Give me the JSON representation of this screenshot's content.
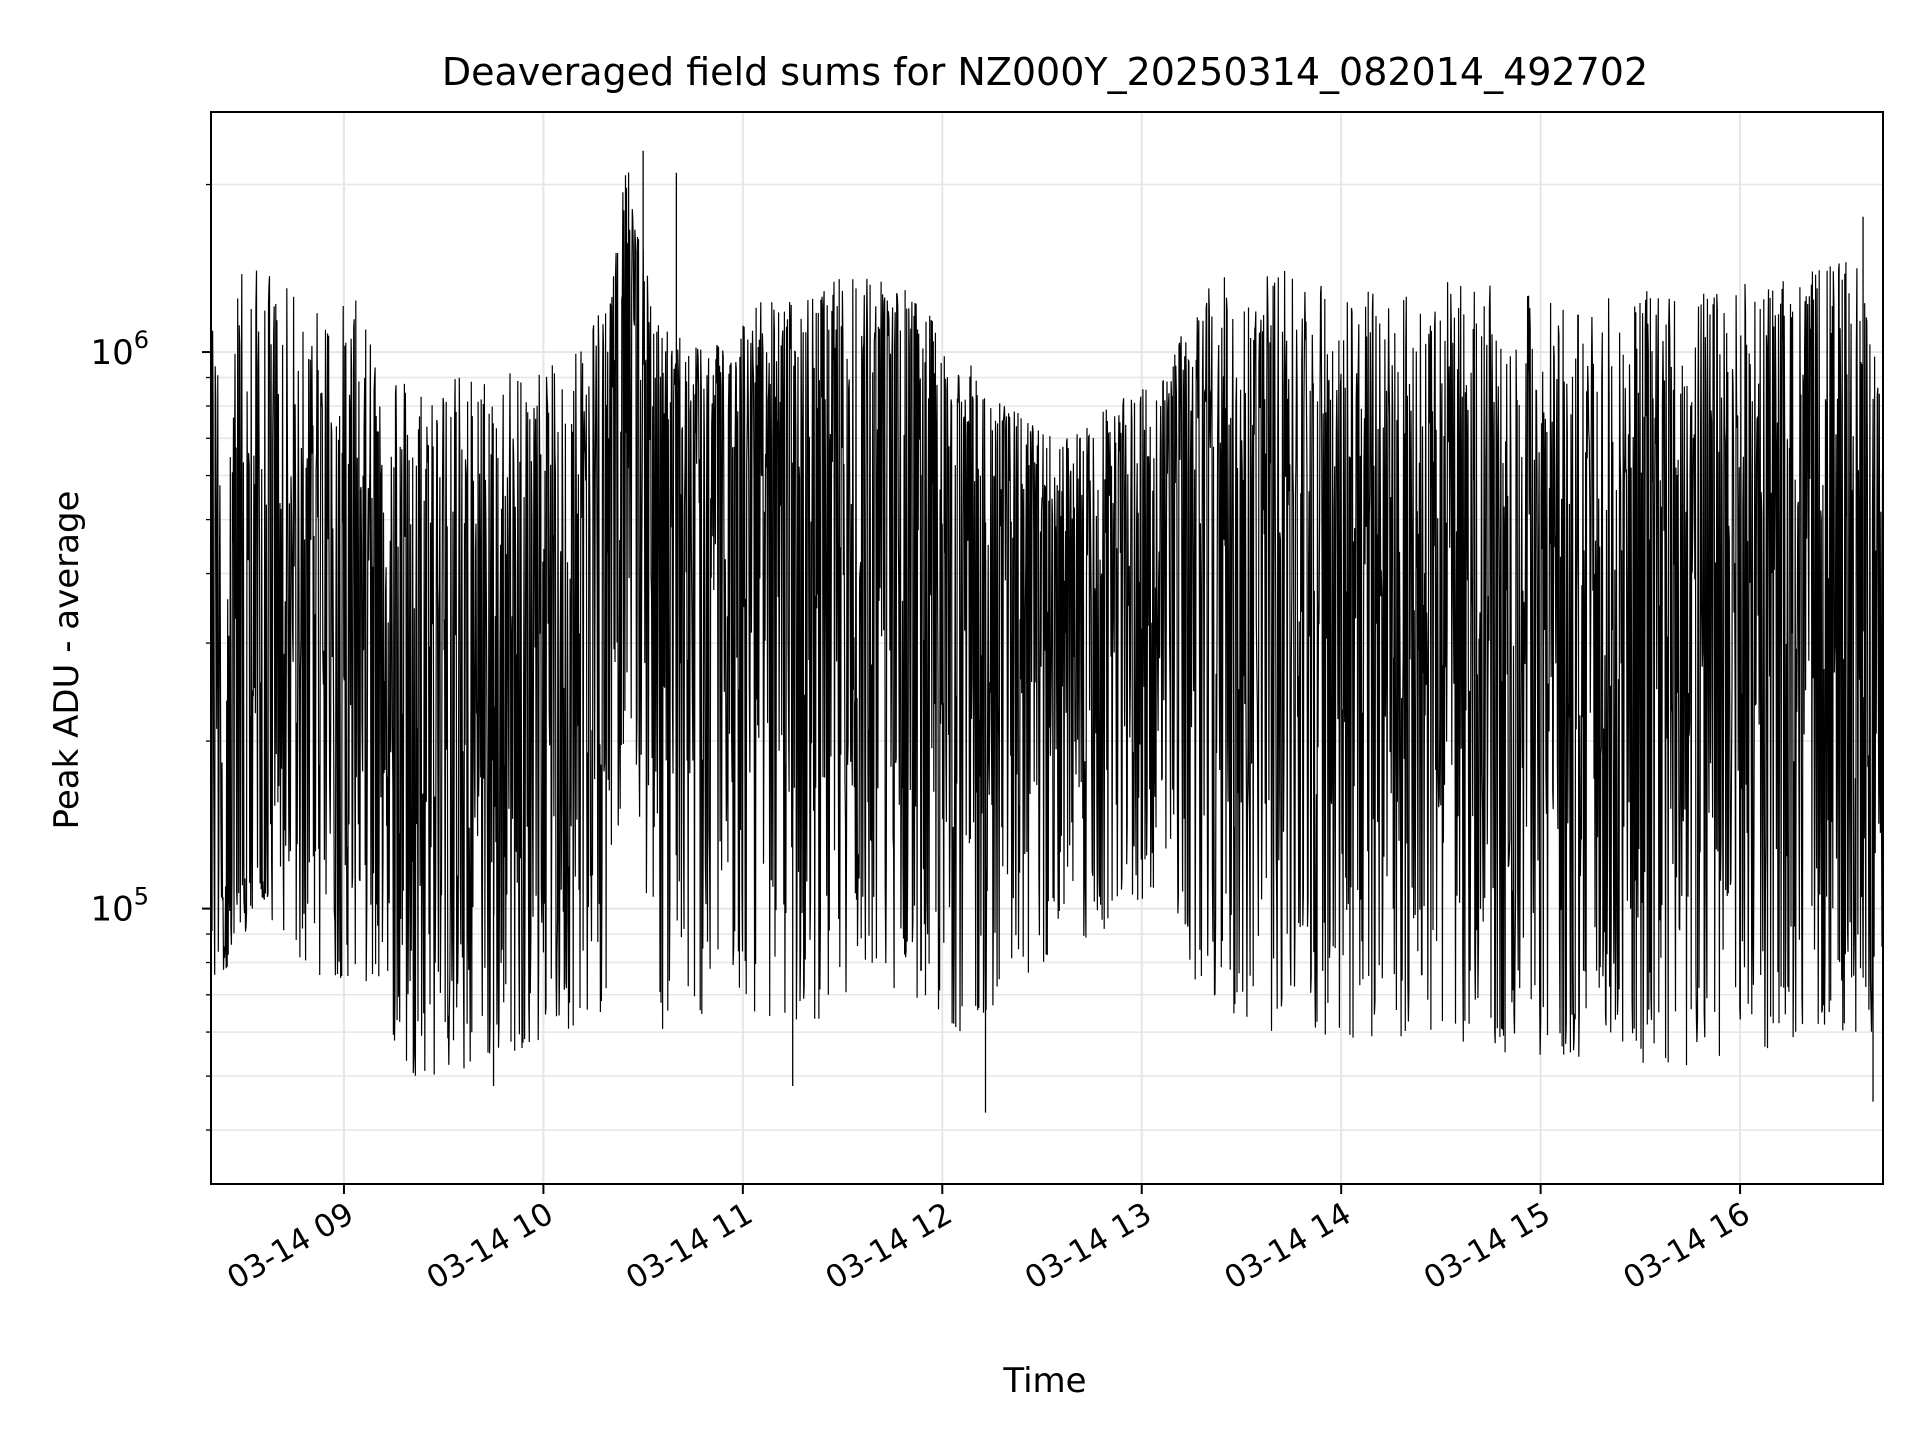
{
  "chart_data": {
    "type": "line",
    "title": "Deaveraged field sums for NZ000Y_20250314_082014_492702",
    "xlabel": "Time",
    "ylabel": "Peak ADU - average",
    "x_range": [
      "2025-03-14 08:20",
      "2025-03-14 16:43"
    ],
    "y_range": [
      32000,
      2700000
    ],
    "y_scale": "log",
    "grid": true,
    "legend": "none",
    "line_color": "#000000",
    "x_ticks": [
      "03-14 09",
      "03-14 10",
      "03-14 11",
      "03-14 12",
      "03-14 13",
      "03-14 14",
      "03-14 15",
      "03-14 16"
    ],
    "x_tick_times": [
      "2025-03-14 09:00",
      "2025-03-14 10:00",
      "2025-03-14 11:00",
      "2025-03-14 12:00",
      "2025-03-14 13:00",
      "2025-03-14 14:00",
      "2025-03-14 15:00",
      "2025-03-14 16:00"
    ],
    "y_ticks": [
      {
        "value": 100000,
        "base": "10",
        "exp": "5"
      },
      {
        "value": 1000000,
        "base": "10",
        "exp": "6"
      }
    ],
    "series": [
      {
        "x": [
          "2025-03-14 08:20",
          "2025-03-14 08:35",
          "2025-03-14 08:50",
          "2025-03-14 09:05",
          "2025-03-14 09:20",
          "2025-03-14 09:35",
          "2025-03-14 09:50",
          "2025-03-14 10:05",
          "2025-03-14 10:20",
          "2025-03-14 10:25",
          "2025-03-14 10:35",
          "2025-03-14 10:50",
          "2025-03-14 11:05",
          "2025-03-14 11:20",
          "2025-03-14 11:35",
          "2025-03-14 11:50",
          "2025-03-14 12:05",
          "2025-03-14 12:20",
          "2025-03-14 12:35",
          "2025-03-14 12:50",
          "2025-03-14 13:05",
          "2025-03-14 13:20",
          "2025-03-14 13:35",
          "2025-03-14 13:50",
          "2025-03-14 14:05",
          "2025-03-14 14:20",
          "2025-03-14 14:35",
          "2025-03-14 14:50",
          "2025-03-14 15:05",
          "2025-03-14 15:20",
          "2025-03-14 15:35",
          "2025-03-14 15:50",
          "2025-03-14 16:05",
          "2025-03-14 16:20",
          "2025-03-14 16:35",
          "2025-03-14 16:43"
        ],
        "y_high": [
          1300000,
          1450000,
          1200000,
          1250000,
          900000,
          920000,
          950000,
          950000,
          1300000,
          2200000,
          1100000,
          1050000,
          1250000,
          1250000,
          1450000,
          1300000,
          1000000,
          800000,
          700000,
          800000,
          900000,
          1350000,
          1400000,
          1400000,
          1300000,
          1300000,
          1350000,
          1300000,
          1250000,
          1250000,
          1300000,
          1300000,
          1350000,
          1400000,
          1500000,
          850000
        ],
        "y_low": [
          70000,
          100000,
          75000,
          75000,
          50000,
          50000,
          55000,
          60000,
          65000,
          250000,
          60000,
          65000,
          65000,
          60000,
          75000,
          70000,
          60000,
          70000,
          85000,
          90000,
          110000,
          65000,
          60000,
          60000,
          58000,
          58000,
          58000,
          55000,
          52000,
          55000,
          52000,
          52000,
          55000,
          60000,
          60000,
          55000
        ],
        "y_mid": [
          110000,
          120000,
          400000,
          300000,
          250000,
          230000,
          220000,
          300000,
          700000,
          1200000,
          750000,
          550000,
          600000,
          650000,
          800000,
          750000,
          550000,
          450000,
          350000,
          420000,
          500000,
          450000,
          400000,
          380000,
          350000,
          330000,
          320000,
          300000,
          280000,
          270000,
          270000,
          280000,
          300000,
          300000,
          320000,
          300000
        ]
      }
    ],
    "notable_spikes": [
      {
        "x": "2025-03-14 10:30",
        "y": 2300000
      },
      {
        "x": "2025-03-14 10:40",
        "y": 2100000
      },
      {
        "x": "2025-03-14 16:37",
        "y": 1750000
      },
      {
        "x": "2025-03-14 09:45",
        "y": 48000
      },
      {
        "x": "2025-03-14 12:13",
        "y": 43000
      },
      {
        "x": "2025-03-14 11:15",
        "y": 48000
      },
      {
        "x": "2025-03-14 16:40",
        "y": 45000
      }
    ]
  }
}
